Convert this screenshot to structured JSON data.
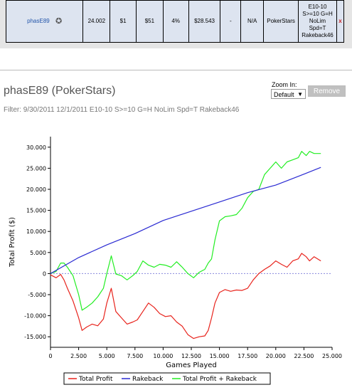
{
  "stats_row": {
    "player": "phasE89",
    "cells": [
      "24.002",
      "$1",
      "$51",
      "4%",
      "$28.543",
      "-",
      "N/A",
      "PokerStars"
    ],
    "filter_lines": [
      "E10-10",
      "S>=10 G=H",
      "NoLim",
      "Spd=T",
      "Rakeback46"
    ],
    "remove_mark": "x"
  },
  "header": {
    "title": "phasE89 (PokerStars)",
    "filter": "Filter: 9/30/2011 12/1/2011 E10-10 S>=10 G=H NoLim Spd=T Rakeback46"
  },
  "zoom": {
    "label": "Zoom In:",
    "selected": "Default"
  },
  "remove_button": "Remove",
  "colors": {
    "total_profit": "#e8231c",
    "rakeback": "#2a2ad2",
    "total_plus_rakeback": "#22ee22",
    "zero_line": "#8888dd"
  },
  "chart_data": {
    "type": "line",
    "xlabel": "Games Played",
    "ylabel": "Total Profit ($)",
    "xlim": [
      0,
      25000
    ],
    "ylim": [
      -17500,
      32500
    ],
    "x_ticks": [
      "0",
      "2.500",
      "5.000",
      "7.500",
      "10.000",
      "12.500",
      "15.000",
      "17.500",
      "20.000",
      "22.500",
      "25.000"
    ],
    "y_ticks": [
      "30.000",
      "25.000",
      "20.000",
      "15.000",
      "10.000",
      "5.000",
      "0",
      "-5.000",
      "-10.000",
      "-15.000"
    ],
    "x_tick_values": [
      0,
      2500,
      5000,
      7500,
      10000,
      12500,
      15000,
      17500,
      20000,
      22500,
      25000
    ],
    "y_tick_values": [
      30000,
      25000,
      20000,
      15000,
      10000,
      5000,
      0,
      -5000,
      -10000,
      -15000
    ],
    "legend_position": "bottom",
    "series": [
      {
        "name": "Total Profit",
        "x": [
          0,
          500,
          900,
          1200,
          1500,
          2000,
          2500,
          2800,
          3200,
          3700,
          4200,
          4700,
          5000,
          5400,
          5800,
          6300,
          6800,
          7300,
          7700,
          8200,
          8700,
          9200,
          9700,
          10200,
          10700,
          11200,
          11700,
          12200,
          12700,
          13200,
          13700,
          14000,
          14300,
          14600,
          15000,
          15500,
          16000,
          16500,
          17000,
          17500,
          18000,
          18500,
          19000,
          19500,
          20000,
          20500,
          21000,
          21500,
          22000,
          22300,
          22700,
          23000,
          23400,
          24000
        ],
        "values": [
          -300,
          -1000,
          -200,
          -1500,
          -3500,
          -6500,
          -10500,
          -13500,
          -12700,
          -12000,
          -12400,
          -10800,
          -7000,
          -3500,
          -9000,
          -10500,
          -12000,
          -11500,
          -11000,
          -9000,
          -7000,
          -8000,
          -9500,
          -10200,
          -10000,
          -11500,
          -12500,
          -14500,
          -15400,
          -15000,
          -14800,
          -13500,
          -10500,
          -7000,
          -4500,
          -3800,
          -4200,
          -3900,
          -4000,
          -3500,
          -1500,
          0,
          1000,
          1800,
          3000,
          2200,
          1500,
          3000,
          3500,
          4800,
          4000,
          3000,
          4000,
          3000
        ]
      },
      {
        "name": "Rakeback",
        "x": [
          0,
          2500,
          5000,
          7500,
          10000,
          12500,
          15000,
          17500,
          20000,
          22500,
          24000
        ],
        "values": [
          0,
          3800,
          6800,
          9500,
          12600,
          14800,
          17000,
          19200,
          21000,
          23600,
          25200
        ]
      },
      {
        "name": "Total Profit + Rakeback",
        "x": [
          0,
          500,
          900,
          1200,
          1500,
          2000,
          2500,
          2800,
          3200,
          3700,
          4200,
          4700,
          5000,
          5400,
          5800,
          6300,
          6800,
          7300,
          7700,
          8200,
          8700,
          9200,
          9700,
          10200,
          10700,
          11200,
          11700,
          12200,
          12700,
          13200,
          13700,
          14000,
          14300,
          14600,
          15000,
          15500,
          16000,
          16500,
          17000,
          17500,
          18000,
          18500,
          19000,
          19500,
          20000,
          20500,
          21000,
          21500,
          22000,
          22300,
          22700,
          23000,
          23400,
          24000
        ],
        "values": [
          0,
          500,
          2500,
          2500,
          1500,
          -500,
          -5000,
          -8700,
          -8000,
          -7000,
          -5500,
          -3500,
          0,
          4200,
          -100,
          -500,
          -1500,
          -500,
          500,
          3000,
          2000,
          1500,
          2200,
          2000,
          1500,
          2800,
          1500,
          0,
          -1000,
          300,
          1000,
          2500,
          3500,
          8000,
          12500,
          13500,
          13700,
          14000,
          15500,
          18000,
          19500,
          20000,
          23500,
          25000,
          26500,
          25000,
          26500,
          27000,
          27500,
          29000,
          28000,
          29000,
          28500,
          28500
        ]
      }
    ]
  }
}
